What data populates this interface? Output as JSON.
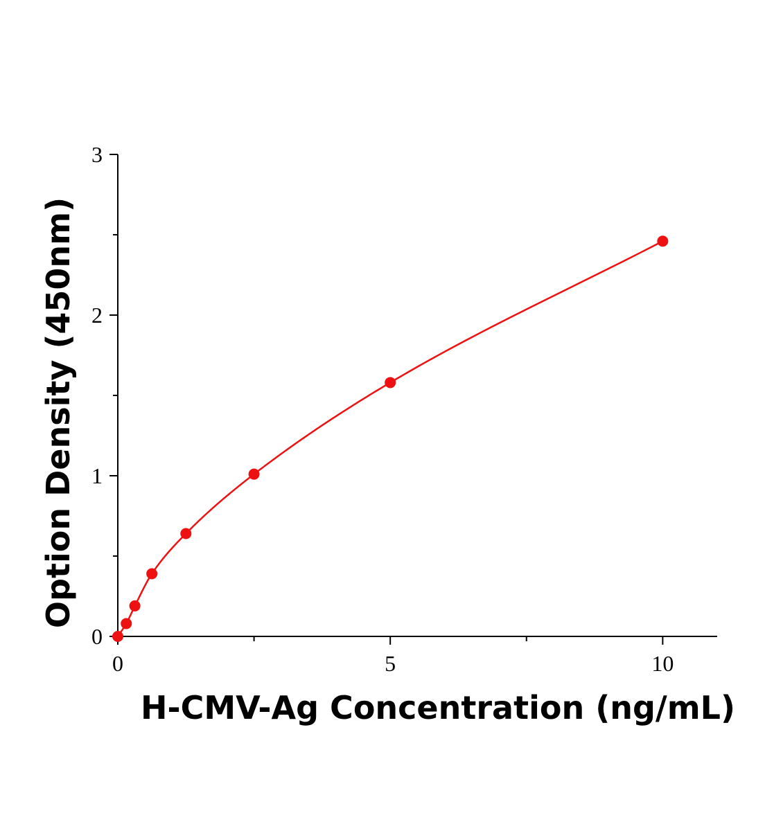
{
  "chart_data": {
    "type": "scatter",
    "xlabel": "H-CMV-Ag Concentration (ng/mL)",
    "ylabel": "Option Density (450nm)",
    "xlim": [
      0,
      11
    ],
    "ylim": [
      0,
      3
    ],
    "x_ticks": [
      {
        "value": 0,
        "label": "0"
      },
      {
        "value": 5,
        "label": "5"
      },
      {
        "value": 10,
        "label": "10"
      }
    ],
    "x_minor_ticks": [
      2.5,
      7.5
    ],
    "y_ticks": [
      {
        "value": 0,
        "label": "0"
      },
      {
        "value": 1,
        "label": "1"
      },
      {
        "value": 2,
        "label": "2"
      },
      {
        "value": 3,
        "label": "3"
      }
    ],
    "y_minor_ticks": [
      0.5,
      1.5,
      2.5
    ],
    "grid": false,
    "series": [
      {
        "color": "#ee1111",
        "fit_curve": true,
        "points": [
          {
            "x": 0,
            "y": 0.0
          },
          {
            "x": 0.156,
            "y": 0.08
          },
          {
            "x": 0.313,
            "y": 0.19
          },
          {
            "x": 0.625,
            "y": 0.39
          },
          {
            "x": 1.25,
            "y": 0.64
          },
          {
            "x": 2.5,
            "y": 1.01
          },
          {
            "x": 5,
            "y": 1.58
          },
          {
            "x": 10,
            "y": 2.46
          }
        ]
      }
    ]
  }
}
